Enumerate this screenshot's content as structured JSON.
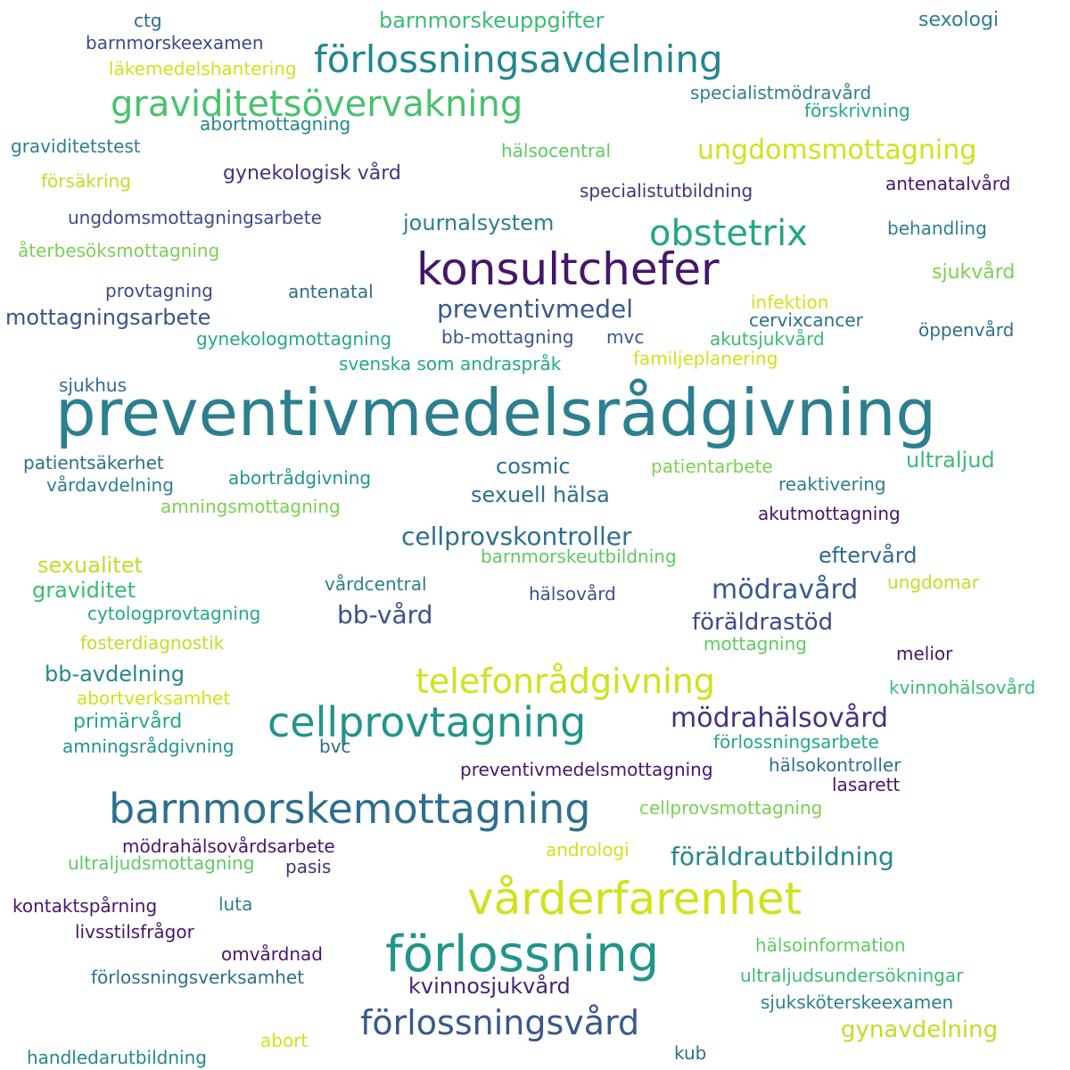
{
  "words": [
    {
      "text": "preventivmedelsrådgivning",
      "color": "#2c7f8e"
    },
    {
      "text": "konsultchefer",
      "color": "#46166b"
    },
    {
      "text": "förlossning",
      "color": "#21948b"
    },
    {
      "text": "vårderfarenhet",
      "color": "#d1e11c"
    },
    {
      "text": "barnmorskemottagning",
      "color": "#2d6f8e"
    },
    {
      "text": "cellprovtagning",
      "color": "#21948b"
    },
    {
      "text": "förlossningsavdelning",
      "color": "#24868e"
    },
    {
      "text": "graviditetsövervakning",
      "color": "#48c16e"
    },
    {
      "text": "obstetrix",
      "color": "#22a884"
    },
    {
      "text": "telefonrådgivning",
      "color": "#d1e11c"
    },
    {
      "text": "förlossningsvård",
      "color": "#38598c"
    },
    {
      "text": "ungdomsmottagning",
      "color": "#d1e11c"
    },
    {
      "text": "mödrahälsovård",
      "color": "#46327e"
    },
    {
      "text": "mödravård",
      "color": "#365c8d"
    },
    {
      "text": "cellprovskontroller",
      "color": "#2d6f8e"
    },
    {
      "text": "preventivmedel",
      "color": "#38598c"
    },
    {
      "text": "föräldrautbildning",
      "color": "#24868e"
    },
    {
      "text": "bb-vård",
      "color": "#3b528b"
    },
    {
      "text": "föräldrastöd",
      "color": "#3e4989"
    },
    {
      "text": "gynavdelning",
      "color": "#bddf26"
    },
    {
      "text": "kvinnosjukvård",
      "color": "#482475"
    },
    {
      "text": "mottagningsarbete",
      "color": "#3b528b"
    },
    {
      "text": "journalsystem",
      "color": "#2c7f8e"
    },
    {
      "text": "sexuell hälsa",
      "color": "#2d6f8e"
    },
    {
      "text": "ultraljud",
      "color": "#3bbb75"
    },
    {
      "text": "cosmic",
      "color": "#2d6f8e"
    },
    {
      "text": "eftervård",
      "color": "#31688e"
    },
    {
      "text": "sexualitet",
      "color": "#bddf26"
    },
    {
      "text": "graviditet",
      "color": "#3bbb75"
    },
    {
      "text": "bb-avdelning",
      "color": "#24868e"
    },
    {
      "text": "sjukvård",
      "color": "#7ad151"
    },
    {
      "text": "gynekologisk vård",
      "color": "#46327e"
    },
    {
      "text": "barnmorskeuppgifter",
      "color": "#3bbb75"
    },
    {
      "text": "primärvård",
      "color": "#22a884"
    },
    {
      "text": "sexologi",
      "color": "#2c7f8e"
    },
    {
      "text": "ctg",
      "color": "#31688e"
    },
    {
      "text": "barnmorskeexamen",
      "color": "#3e4989"
    },
    {
      "text": "läkemedelshantering",
      "color": "#d1e11c"
    },
    {
      "text": "specialistmödravård",
      "color": "#2c7f8e"
    },
    {
      "text": "förskrivning",
      "color": "#22a884"
    },
    {
      "text": "abortmottagning",
      "color": "#24868e"
    },
    {
      "text": "graviditetstest",
      "color": "#2c7f8e"
    },
    {
      "text": "hälsocentral",
      "color": "#5ec962"
    },
    {
      "text": "försäkring",
      "color": "#bddf26"
    },
    {
      "text": "specialistutbildning",
      "color": "#46327e"
    },
    {
      "text": "antenatalvård",
      "color": "#46166b"
    },
    {
      "text": "ungdomsmottagningsarbete",
      "color": "#3e4989"
    },
    {
      "text": "behandling",
      "color": "#2c7f8e"
    },
    {
      "text": "återbesöksmottagning",
      "color": "#7ad151"
    },
    {
      "text": "provtagning",
      "color": "#3e4989"
    },
    {
      "text": "antenatal",
      "color": "#2d6f8e"
    },
    {
      "text": "infektion",
      "color": "#d1e11c"
    },
    {
      "text": "cervixcancer",
      "color": "#2d6f8e"
    },
    {
      "text": "gynekologmottagning",
      "color": "#22a884"
    },
    {
      "text": "bb-mottagning",
      "color": "#3b528b"
    },
    {
      "text": "mvc",
      "color": "#3b528b"
    },
    {
      "text": "akutsjukvård",
      "color": "#3bbb75"
    },
    {
      "text": "öppenvård",
      "color": "#2d6f8e"
    },
    {
      "text": "svenska som andraspråk",
      "color": "#22a884"
    },
    {
      "text": "familjeplanering",
      "color": "#d1e11c"
    },
    {
      "text": "sjukhus",
      "color": "#31688e"
    },
    {
      "text": "patientsäkerhet",
      "color": "#2d6f8e"
    },
    {
      "text": "vårdavdelning",
      "color": "#2c7f8e"
    },
    {
      "text": "abortrådgivning",
      "color": "#21948b"
    },
    {
      "text": "patientarbete",
      "color": "#7ad151"
    },
    {
      "text": "reaktivering",
      "color": "#2c7f8e"
    },
    {
      "text": "amningsmottagning",
      "color": "#7ad151"
    },
    {
      "text": "akutmottagning",
      "color": "#46166b"
    },
    {
      "text": "barnmorskeutbildning",
      "color": "#5ec962"
    },
    {
      "text": "vårdcentral",
      "color": "#2c7f8e"
    },
    {
      "text": "hälsovård",
      "color": "#3b528b"
    },
    {
      "text": "ungdomar",
      "color": "#bddf26"
    },
    {
      "text": "cytologprovtagning",
      "color": "#22a884"
    },
    {
      "text": "fosterdiagnostik",
      "color": "#bddf26"
    },
    {
      "text": "mottagning",
      "color": "#5ec962"
    },
    {
      "text": "melior",
      "color": "#46166b"
    },
    {
      "text": "abortverksamhet",
      "color": "#d1e11c"
    },
    {
      "text": "kvinnohälsovård",
      "color": "#3bbb75"
    },
    {
      "text": "amningsrådgivning",
      "color": "#21948b"
    },
    {
      "text": "bvc",
      "color": "#31688e"
    },
    {
      "text": "förlossningsarbete",
      "color": "#22a884"
    },
    {
      "text": "preventivmedelsmottagning",
      "color": "#46166b"
    },
    {
      "text": "hälsokontroller",
      "color": "#2d6f8e"
    },
    {
      "text": "lasarett",
      "color": "#46166b"
    },
    {
      "text": "cellprovsmottagning",
      "color": "#7ad151"
    },
    {
      "text": "mödrahälsovårdsarbete",
      "color": "#46166b"
    },
    {
      "text": "ultraljudsmottagning",
      "color": "#5ec962"
    },
    {
      "text": "pasis",
      "color": "#46327e"
    },
    {
      "text": "andrologi",
      "color": "#d1e11c"
    },
    {
      "text": "kontaktspårning",
      "color": "#46166b"
    },
    {
      "text": "luta",
      "color": "#2c7f8e"
    },
    {
      "text": "livsstilsfrågor",
      "color": "#46166b"
    },
    {
      "text": "omvårdnad",
      "color": "#46166b"
    },
    {
      "text": "hälsoinformation",
      "color": "#5ec962"
    },
    {
      "text": "ultraljudsundersökningar",
      "color": "#3bbb75"
    },
    {
      "text": "förlossningsverksamhet",
      "color": "#2d6f8e"
    },
    {
      "text": "sjuksköterskeexamen",
      "color": "#2c7f8e"
    },
    {
      "text": "abort",
      "color": "#d1e11c"
    },
    {
      "text": "handledarutbildning",
      "color": "#24868e"
    },
    {
      "text": "kub",
      "color": "#2d6f8e"
    }
  ]
}
